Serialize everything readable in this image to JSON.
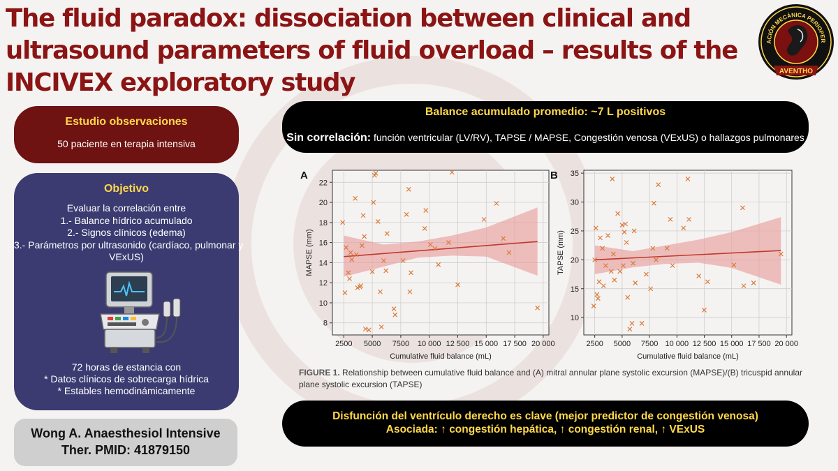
{
  "title": {
    "lines": [
      "The fluid paradox: dissociation between clinical and",
      "ultrasound parameters of fluid overload – results of the",
      "INCIVEX exploratory study"
    ]
  },
  "logo": {
    "ring_text": "VENTILACIÓN MECÁNICA PERIOPERATORIA",
    "ribbon_text": "AVENTHO"
  },
  "study": {
    "heading": "Estudio observaciones",
    "text": "50 paciente en terapia intensiva"
  },
  "objective": {
    "heading": "Objetivo",
    "items": [
      "Evaluar la correlación entre",
      "1.- Balance hídrico acumulado",
      "2.- Signos clínicos (edema)",
      "3.- Parámetros por ultrasonido (cardíaco, pulmonar y",
      "VExUS)"
    ],
    "criteria": [
      "72 horas de estancia con",
      "* Datos clínicos de sobrecarga hídrica",
      "* Estables hemodinámicamente"
    ]
  },
  "reference": {
    "line1": "Wong A. Anaesthesiol Intensive",
    "line2": "Ther. PMID: 41879150"
  },
  "balance": {
    "heading": "Balance acumulado promedio: ~7 L positivos",
    "no_corr_label": "Sin correlación:",
    "no_corr_text": "función ventricular (LV/RV), TAPSE / MAPSE, Congestión venosa (VExUS) o hallazgos pulmonares"
  },
  "conclusion": {
    "line1": "Disfunción del ventrículo derecho es clave (mejor predictor de congestión venosa)",
    "line2": "Asociada: ↑ congestión hepática, ↑ congestión renal, ↑ VExUS"
  },
  "figure": {
    "caption_label": "FIGURE 1.",
    "caption_text": "Relationship between cumulative fluid balance and (A) mitral annular plane systolic excursion (MAPSE)/(B) tricuspid annular plane systolic excursion (TAPSE)"
  },
  "colors": {
    "title": "#8b1414",
    "accent_yellow": "#ffd84a",
    "study_bg": "#6f1212",
    "objective_bg": "#3b3b72",
    "point": "#d97a3a",
    "regression": "#c0392b",
    "ci_band": "#e8a0a0"
  },
  "chart_data": [
    {
      "type": "scatter",
      "panel": "A",
      "xlabel": "Cumulative fluid balance (mL)",
      "ylabel": "MAPSE (mm)",
      "xlim": [
        1500,
        20500
      ],
      "ylim": [
        6.8,
        23.2
      ],
      "xticks": [
        2500,
        5000,
        7500,
        10000,
        12500,
        15000,
        17500,
        20000
      ],
      "xtick_labels": [
        "2500",
        "5000",
        "7500",
        "10 000",
        "12 500",
        "15 000",
        "17 500",
        "20 000"
      ],
      "yticks": [
        8,
        10,
        12,
        14,
        16,
        18,
        20,
        22
      ],
      "grid": true,
      "marker": "x",
      "regression": {
        "x": [
          2500,
          19500
        ],
        "y": [
          14.6,
          16.1
        ]
      },
      "ci_band": {
        "x": [
          2500,
          6000,
          9000,
          12000,
          15000,
          19500
        ],
        "upper": [
          16.7,
          15.8,
          16.1,
          16.7,
          17.5,
          19.5
        ],
        "lower": [
          12.6,
          13.6,
          14.5,
          14.7,
          14.6,
          12.7
        ]
      },
      "points": [
        [
          2400,
          18
        ],
        [
          2600,
          11
        ],
        [
          2700,
          15.5
        ],
        [
          2900,
          13
        ],
        [
          3000,
          12.4
        ],
        [
          3100,
          15
        ],
        [
          3200,
          14.3
        ],
        [
          3500,
          20.4
        ],
        [
          3600,
          14.8
        ],
        [
          3700,
          11.5
        ],
        [
          3900,
          11.6
        ],
        [
          4000,
          11.7
        ],
        [
          4100,
          15.7
        ],
        [
          4200,
          18.7
        ],
        [
          4300,
          16.6
        ],
        [
          4400,
          7.4
        ],
        [
          4700,
          7.3
        ],
        [
          5000,
          13.1
        ],
        [
          5100,
          20
        ],
        [
          5200,
          22.7
        ],
        [
          5300,
          22.9
        ],
        [
          5500,
          18.1
        ],
        [
          5700,
          11.1
        ],
        [
          5800,
          7.6
        ],
        [
          6000,
          14.2
        ],
        [
          6200,
          13.2
        ],
        [
          6300,
          16.9
        ],
        [
          6900,
          9.4
        ],
        [
          7000,
          8.8
        ],
        [
          7700,
          14.2
        ],
        [
          8000,
          18.8
        ],
        [
          8200,
          21.3
        ],
        [
          8300,
          11.1
        ],
        [
          8400,
          13
        ],
        [
          9600,
          17.4
        ],
        [
          9700,
          19.2
        ],
        [
          10100,
          15.8
        ],
        [
          10500,
          15.4
        ],
        [
          10800,
          13.8
        ],
        [
          11700,
          16
        ],
        [
          12000,
          23
        ],
        [
          12500,
          11.8
        ],
        [
          14800,
          18.3
        ],
        [
          15900,
          19.9
        ],
        [
          16500,
          16.4
        ],
        [
          17000,
          15
        ],
        [
          19500,
          9.5
        ]
      ]
    },
    {
      "type": "scatter",
      "panel": "B",
      "xlabel": "Cumulative fluid balance (mL)",
      "ylabel": "TAPSE (mm)",
      "xlim": [
        1500,
        20500
      ],
      "ylim": [
        7,
        35.5
      ],
      "xticks": [
        2500,
        5000,
        7500,
        10000,
        12500,
        15000,
        17500,
        20000
      ],
      "xtick_labels": [
        "2500",
        "5000",
        "7500",
        "10 000",
        "12 500",
        "15 000",
        "17 500",
        "20 000"
      ],
      "yticks": [
        10,
        15,
        20,
        25,
        30,
        35
      ],
      "grid": true,
      "marker": "x",
      "regression": {
        "x": [
          2500,
          19500
        ],
        "y": [
          20.0,
          21.6
        ]
      },
      "ci_band": {
        "x": [
          2500,
          6000,
          9000,
          12000,
          15000,
          19500
        ],
        "upper": [
          22.5,
          21.5,
          22.5,
          23.5,
          24.8,
          27.4
        ],
        "lower": [
          17.5,
          18.7,
          19.3,
          19.5,
          18.6,
          15.7
        ]
      },
      "points": [
        [
          2400,
          12
        ],
        [
          2500,
          20
        ],
        [
          2600,
          25.5
        ],
        [
          2700,
          14
        ],
        [
          2800,
          13.3
        ],
        [
          2900,
          16.2
        ],
        [
          3000,
          23.8
        ],
        [
          3200,
          22
        ],
        [
          3300,
          15.5
        ],
        [
          3500,
          19
        ],
        [
          3700,
          24.2
        ],
        [
          4000,
          18
        ],
        [
          4100,
          34
        ],
        [
          4200,
          21
        ],
        [
          4300,
          16.5
        ],
        [
          4600,
          28
        ],
        [
          4800,
          18
        ],
        [
          5000,
          26
        ],
        [
          5100,
          19
        ],
        [
          5200,
          24.8
        ],
        [
          5300,
          26.2
        ],
        [
          5400,
          23
        ],
        [
          5500,
          13.5
        ],
        [
          5700,
          8
        ],
        [
          5900,
          9
        ],
        [
          6000,
          19.4
        ],
        [
          6100,
          25
        ],
        [
          6200,
          16
        ],
        [
          6800,
          9
        ],
        [
          7200,
          17.5
        ],
        [
          7600,
          15
        ],
        [
          7800,
          22
        ],
        [
          7900,
          29.8
        ],
        [
          8100,
          20
        ],
        [
          8300,
          33
        ],
        [
          9100,
          22
        ],
        [
          9400,
          27
        ],
        [
          9600,
          19
        ],
        [
          10600,
          25.5
        ],
        [
          11000,
          34
        ],
        [
          11100,
          27
        ],
        [
          12000,
          17.2
        ],
        [
          12500,
          11.3
        ],
        [
          12800,
          16.2
        ],
        [
          15200,
          19.1
        ],
        [
          16000,
          29
        ],
        [
          16100,
          15.5
        ],
        [
          17000,
          16
        ],
        [
          19500,
          21
        ]
      ]
    }
  ]
}
